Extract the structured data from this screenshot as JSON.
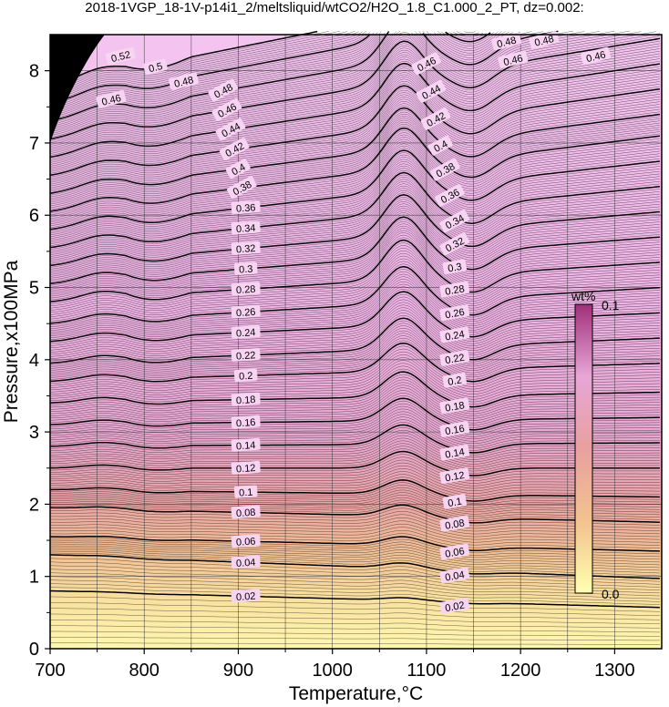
{
  "chart_data": {
    "type": "contour",
    "title": "2018-1VGP_18-1V-p14i1_2/meltsliquid/wtCO2/H2O_1.8_C1.000_2_PT, dz=0.002:",
    "xlabel": "Temperature,°C",
    "ylabel": "Pressure,x100MPa",
    "xlim": [
      700,
      1350
    ],
    "ylim": [
      0,
      8.5
    ],
    "xticks": [
      "700",
      "800",
      "900",
      "1000",
      "1100",
      "1200",
      "1300"
    ],
    "yticks": [
      "0",
      "1",
      "2",
      "3",
      "4",
      "5",
      "6",
      "7",
      "8"
    ],
    "grid": true,
    "contour_interval": 0.002,
    "labeled_interval": 0.02,
    "colorbar": {
      "title": "wt%",
      "min_label": "0.0",
      "max_label": "0.1",
      "colors": [
        "#ffffb0",
        "#f2c28f",
        "#e8a0a0",
        "#e7a6d6",
        "#a0307a"
      ]
    },
    "contour_labels_left": [
      "0.02",
      "0.04",
      "0.06",
      "0.08",
      "0.1",
      "0.12",
      "0.14",
      "0.16",
      "0.18",
      "0.2",
      "0.22",
      "0.24",
      "0.26",
      "0.28",
      "0.3",
      "0.32",
      "0.34",
      "0.36",
      "0.38",
      "0.4",
      "0.42",
      "0.44",
      "0.46",
      "0.48"
    ],
    "contour_labels_right": [
      "0.02",
      "0.04",
      "0.06",
      "0.08",
      "0.1",
      "0.12",
      "0.14",
      "0.16",
      "0.18",
      "0.2",
      "0.22",
      "0.24",
      "0.26",
      "0.28",
      "0.3",
      "0.32",
      "0.34",
      "0.36",
      "0.38",
      "0.4",
      "0.42",
      "0.44",
      "0.46"
    ],
    "contour_labels_top": [
      "0.52",
      "0.5",
      "0.48",
      "0.46",
      "0.48",
      "0.48",
      "0.46",
      "0.46"
    ],
    "contours_at_700C": [
      {
        "level": 0.02,
        "p": 0.8
      },
      {
        "level": 0.04,
        "p": 1.3
      },
      {
        "level": 0.06,
        "p": 1.55
      },
      {
        "level": 0.08,
        "p": 1.95
      },
      {
        "level": 0.1,
        "p": 2.2
      },
      {
        "level": 0.12,
        "p": 2.5
      },
      {
        "level": 0.14,
        "p": 2.8
      },
      {
        "level": 0.16,
        "p": 3.1
      },
      {
        "level": 0.18,
        "p": 3.4
      },
      {
        "level": 0.2,
        "p": 3.7
      },
      {
        "level": 0.22,
        "p": 3.95
      },
      {
        "level": 0.24,
        "p": 4.25
      },
      {
        "level": 0.26,
        "p": 4.5
      },
      {
        "level": 0.28,
        "p": 4.8
      },
      {
        "level": 0.3,
        "p": 5.05
      },
      {
        "level": 0.32,
        "p": 5.3
      },
      {
        "level": 0.34,
        "p": 5.55
      },
      {
        "level": 0.36,
        "p": 5.8
      },
      {
        "level": 0.38,
        "p": 6.05
      },
      {
        "level": 0.4,
        "p": 6.3
      },
      {
        "level": 0.42,
        "p": 6.55
      },
      {
        "level": 0.44,
        "p": 6.8
      },
      {
        "level": 0.46,
        "p": 7.05
      },
      {
        "level": 0.48,
        "p": 7.3
      }
    ],
    "contours_at_1350C": [
      {
        "level": 0.02,
        "p": 0.57
      },
      {
        "level": 0.04,
        "p": 0.97
      },
      {
        "level": 0.06,
        "p": 1.35
      },
      {
        "level": 0.08,
        "p": 1.75
      },
      {
        "level": 0.1,
        "p": 2.1
      },
      {
        "level": 0.12,
        "p": 2.5
      },
      {
        "level": 0.14,
        "p": 2.85
      },
      {
        "level": 0.16,
        "p": 3.2
      },
      {
        "level": 0.18,
        "p": 3.55
      },
      {
        "level": 0.2,
        "p": 3.95
      },
      {
        "level": 0.22,
        "p": 4.3
      },
      {
        "level": 0.24,
        "p": 4.65
      },
      {
        "level": 0.26,
        "p": 5.0
      },
      {
        "level": 0.28,
        "p": 5.35
      },
      {
        "level": 0.3,
        "p": 5.7
      },
      {
        "level": 0.32,
        "p": 6.05
      },
      {
        "level": 0.34,
        "p": 6.4
      },
      {
        "level": 0.36,
        "p": 6.75
      },
      {
        "level": 0.38,
        "p": 7.1
      },
      {
        "level": 0.4,
        "p": 7.4
      },
      {
        "level": 0.42,
        "p": 7.75
      },
      {
        "level": 0.44,
        "p": 8.1
      },
      {
        "level": 0.46,
        "p": 8.45
      }
    ]
  }
}
